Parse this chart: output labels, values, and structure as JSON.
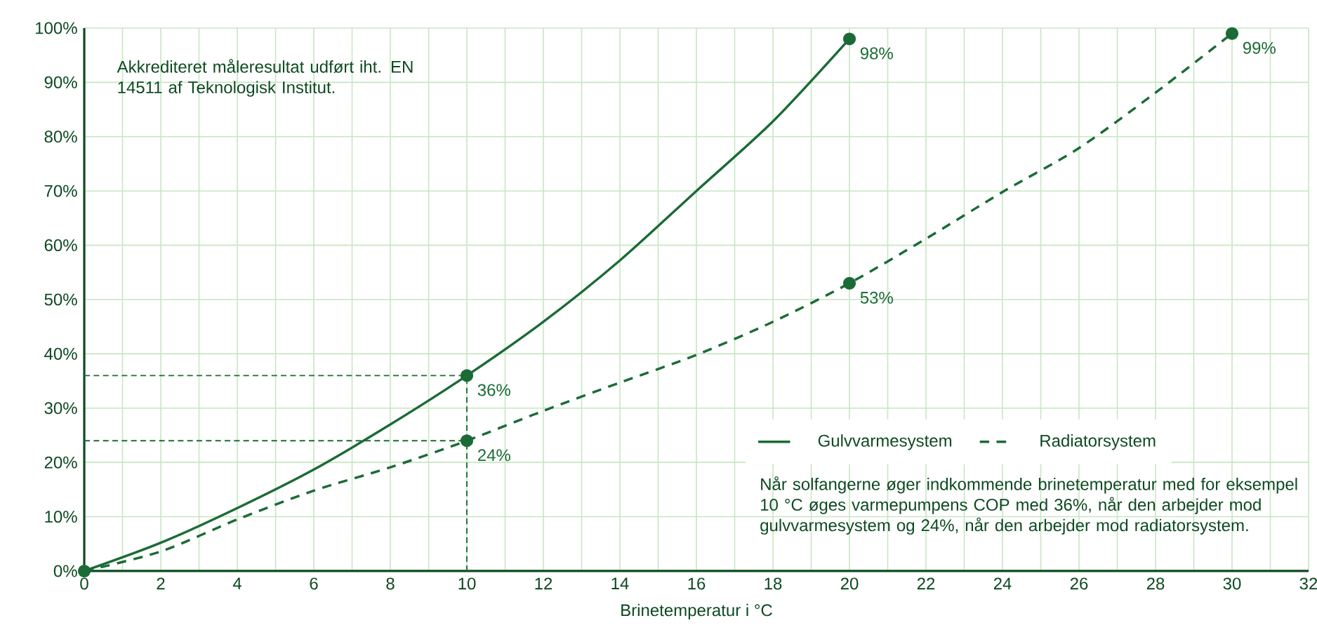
{
  "chart_data": {
    "type": "line",
    "xlabel": "Brinetemperatur i °C",
    "xlim": [
      0,
      32
    ],
    "xticks": [
      0,
      {
        "value": 1,
        "label": null
      },
      2,
      {
        "value": 3,
        "label": null
      },
      4,
      {
        "value": 5,
        "label": null
      },
      6,
      {
        "value": 7,
        "label": null
      },
      8,
      {
        "value": 9,
        "label": null
      },
      10,
      {
        "value": 11,
        "label": null
      },
      12,
      {
        "value": 13,
        "label": null
      },
      14,
      {
        "value": 15,
        "label": null
      },
      16,
      {
        "value": 17,
        "label": null
      },
      18,
      {
        "value": 19,
        "label": null
      },
      20,
      {
        "value": 21,
        "label": null
      },
      22,
      {
        "value": 23,
        "label": null
      },
      24,
      {
        "value": 25,
        "label": null
      },
      26,
      {
        "value": 27,
        "label": null
      },
      28,
      {
        "value": 29,
        "label": null
      },
      30,
      {
        "value": 31,
        "label": null
      },
      32
    ],
    "ylim": [
      0,
      100
    ],
    "yticks": [
      {
        "value": 0,
        "label": "0%"
      },
      {
        "value": 10,
        "label": "10%"
      },
      {
        "value": 20,
        "label": "20%"
      },
      {
        "value": 30,
        "label": "30%"
      },
      {
        "value": 40,
        "label": "40%"
      },
      {
        "value": 50,
        "label": "50%"
      },
      {
        "value": 60,
        "label": "60%"
      },
      {
        "value": 70,
        "label": "70%"
      },
      {
        "value": 80,
        "label": "80%"
      },
      {
        "value": 90,
        "label": "90%"
      },
      {
        "value": 100,
        "label": "100%"
      }
    ],
    "grid": true,
    "legend": "bottom right",
    "annotations": [
      "Akkrediteret måleresultat udført iht. EN 14511 af Teknologisk Institut.",
      "Når solfangerne øger indkommende brinetemperatur med for eksempel 10 °C øges varmepumpens COP med 36%, når den arbejder mod gulvvarmesystem og 24%, når den arbejder mod radiatorsystem."
    ],
    "series": [
      {
        "name": "Gulvvarmesystem",
        "color": "#1b6b36",
        "line_style": "solid",
        "marker": "none",
        "x": [
          0,
          2,
          4,
          6,
          8,
          10,
          12,
          14,
          16,
          18,
          20
        ],
        "values": [
          0,
          5.2,
          11.6,
          18.7,
          27,
          36,
          45.9,
          57.2,
          70,
          82.8,
          98
        ]
      },
      {
        "name": "Radiatorsystem",
        "color": "#1b6b36",
        "line_style": "dashed",
        "marker": "none",
        "x": [
          0,
          2,
          4,
          6,
          8,
          10,
          12,
          14,
          16,
          18,
          20,
          22,
          24,
          26,
          28,
          30
        ],
        "values": [
          0,
          3.6,
          9.5,
          14.8,
          19.1,
          24,
          29.5,
          34.7,
          39.8,
          45.9,
          53,
          61.2,
          69.8,
          77.9,
          88.1,
          99
        ]
      },
      {
        "type": "scatter",
        "color": "#1b6b36",
        "marker": "circle",
        "x": [
          0,
          10,
          20
        ],
        "values": [
          0,
          36,
          98
        ],
        "value_labels": [
          null,
          "36%",
          "98%"
        ]
      },
      {
        "type": "scatter",
        "color": "#1b6b36",
        "marker": "circle",
        "x": [
          10,
          20,
          30
        ],
        "values": [
          24,
          53,
          99
        ],
        "value_labels": [
          "24%",
          "53%",
          "99%"
        ]
      }
    ],
    "ref_lines": [
      {
        "axis": "y",
        "value": 36,
        "color": "#1b6b36",
        "line_style": "dashed"
      },
      {
        "axis": "y",
        "value": 24,
        "color": "#1b6b36",
        "line_style": "dashed"
      },
      {
        "axis": "x",
        "value": 10,
        "color": "#1b6b36",
        "line_style": "dashed"
      }
    ]
  }
}
